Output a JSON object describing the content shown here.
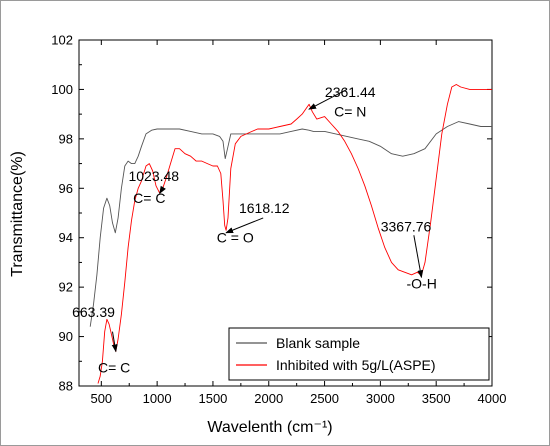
{
  "chart_data": {
    "type": "line",
    "xlabel": "Wavelenth (cm⁻¹)",
    "ylabel": "Transmittance(%)",
    "xlim": [
      300,
      4000
    ],
    "ylim": [
      88,
      102
    ],
    "xticks": [
      "500",
      "1000",
      "1500",
      "2000",
      "2500",
      "3000",
      "3500",
      "4000"
    ],
    "yticks": [
      "88",
      "90",
      "92",
      "94",
      "96",
      "98",
      "100",
      "102"
    ],
    "grid": false,
    "legend_position": "bottom-right",
    "series": [
      {
        "name": "Blank sample",
        "color": "#555555",
        "points": [
          [
            400,
            90.4
          ],
          [
            430,
            91.3
          ],
          [
            460,
            92.5
          ],
          [
            490,
            94.0
          ],
          [
            520,
            95.2
          ],
          [
            550,
            95.6
          ],
          [
            575,
            95.3
          ],
          [
            600,
            94.6
          ],
          [
            625,
            94.2
          ],
          [
            650,
            94.8
          ],
          [
            680,
            96.0
          ],
          [
            710,
            96.9
          ],
          [
            740,
            97.1
          ],
          [
            770,
            97.0
          ],
          [
            800,
            97.0
          ],
          [
            830,
            97.3
          ],
          [
            860,
            97.7
          ],
          [
            900,
            98.2
          ],
          [
            950,
            98.35
          ],
          [
            1000,
            98.4
          ],
          [
            1100,
            98.4
          ],
          [
            1200,
            98.4
          ],
          [
            1300,
            98.3
          ],
          [
            1400,
            98.2
          ],
          [
            1500,
            98.2
          ],
          [
            1560,
            98.1
          ],
          [
            1590,
            97.9
          ],
          [
            1610,
            97.2
          ],
          [
            1630,
            97.6
          ],
          [
            1660,
            98.2
          ],
          [
            1700,
            98.2
          ],
          [
            1800,
            98.2
          ],
          [
            1900,
            98.2
          ],
          [
            2000,
            98.2
          ],
          [
            2100,
            98.2
          ],
          [
            2200,
            98.3
          ],
          [
            2300,
            98.4
          ],
          [
            2360,
            98.35
          ],
          [
            2400,
            98.3
          ],
          [
            2500,
            98.3
          ],
          [
            2600,
            98.2
          ],
          [
            2700,
            98.1
          ],
          [
            2800,
            98.0
          ],
          [
            2900,
            97.9
          ],
          [
            3000,
            97.7
          ],
          [
            3100,
            97.4
          ],
          [
            3200,
            97.3
          ],
          [
            3300,
            97.4
          ],
          [
            3400,
            97.6
          ],
          [
            3500,
            98.2
          ],
          [
            3600,
            98.5
          ],
          [
            3700,
            98.7
          ],
          [
            3800,
            98.6
          ],
          [
            3900,
            98.5
          ],
          [
            4000,
            98.5
          ]
        ]
      },
      {
        "name": "Inhibited with 5g/L(ASPE)",
        "color": "#ff0000",
        "points": [
          [
            470,
            88.1
          ],
          [
            490,
            88.4
          ],
          [
            510,
            89.0
          ],
          [
            530,
            90.2
          ],
          [
            550,
            90.7
          ],
          [
            570,
            90.5
          ],
          [
            590,
            90.1
          ],
          [
            610,
            89.7
          ],
          [
            630,
            89.4
          ],
          [
            650,
            89.9
          ],
          [
            680,
            90.9
          ],
          [
            710,
            92.2
          ],
          [
            740,
            93.6
          ],
          [
            770,
            94.7
          ],
          [
            800,
            95.5
          ],
          [
            830,
            96.0
          ],
          [
            860,
            96.3
          ],
          [
            900,
            96.9
          ],
          [
            930,
            97.0
          ],
          [
            960,
            96.7
          ],
          [
            990,
            96.1
          ],
          [
            1023,
            95.8
          ],
          [
            1050,
            96.0
          ],
          [
            1080,
            96.4
          ],
          [
            1120,
            97.0
          ],
          [
            1160,
            97.6
          ],
          [
            1200,
            97.6
          ],
          [
            1250,
            97.4
          ],
          [
            1300,
            97.3
          ],
          [
            1350,
            97.1
          ],
          [
            1400,
            97.1
          ],
          [
            1450,
            97.0
          ],
          [
            1500,
            96.9
          ],
          [
            1540,
            96.9
          ],
          [
            1570,
            96.6
          ],
          [
            1590,
            95.5
          ],
          [
            1605,
            94.5
          ],
          [
            1618,
            94.3
          ],
          [
            1635,
            94.8
          ],
          [
            1660,
            96.8
          ],
          [
            1700,
            97.8
          ],
          [
            1750,
            98.1
          ],
          [
            1800,
            98.2
          ],
          [
            1850,
            98.3
          ],
          [
            1900,
            98.4
          ],
          [
            2000,
            98.4
          ],
          [
            2100,
            98.5
          ],
          [
            2200,
            98.6
          ],
          [
            2250,
            98.8
          ],
          [
            2300,
            99.0
          ],
          [
            2330,
            99.2
          ],
          [
            2361,
            99.4
          ],
          [
            2390,
            99.1
          ],
          [
            2430,
            98.8
          ],
          [
            2500,
            98.9
          ],
          [
            2560,
            98.6
          ],
          [
            2620,
            98.3
          ],
          [
            2680,
            97.9
          ],
          [
            2740,
            97.4
          ],
          [
            2800,
            96.8
          ],
          [
            2860,
            96.1
          ],
          [
            2920,
            95.3
          ],
          [
            2980,
            94.4
          ],
          [
            3040,
            93.6
          ],
          [
            3100,
            93.0
          ],
          [
            3160,
            92.7
          ],
          [
            3220,
            92.6
          ],
          [
            3280,
            92.5
          ],
          [
            3330,
            92.6
          ],
          [
            3368,
            92.5
          ],
          [
            3400,
            93.0
          ],
          [
            3450,
            94.6
          ],
          [
            3500,
            96.4
          ],
          [
            3550,
            98.2
          ],
          [
            3600,
            99.4
          ],
          [
            3640,
            100.1
          ],
          [
            3680,
            100.2
          ],
          [
            3720,
            100.1
          ],
          [
            3800,
            100.0
          ],
          [
            3900,
            100.0
          ],
          [
            4000,
            100.0
          ]
        ]
      }
    ],
    "annotations": [
      {
        "number": "663.39",
        "group": "C= C",
        "at": [
          630,
          89.4
        ],
        "number_at": [
          430,
          90.8
        ],
        "group_at": [
          615,
          88.55
        ],
        "arrow_from": [
          600,
          90.2
        ]
      },
      {
        "number": "1023.48",
        "group": "C= C",
        "at": [
          1023,
          95.8
        ],
        "number_at": [
          970,
          96.3
        ],
        "group_at": [
          930,
          95.4
        ],
        "arrow_from": [
          1050,
          96.0
        ]
      },
      {
        "number": "1618.12",
        "group": "C = O",
        "at": [
          1618,
          94.2
        ],
        "number_at": [
          1960,
          95.0
        ],
        "group_at": [
          1700,
          93.8
        ],
        "arrow_from": [
          1950,
          94.8
        ]
      },
      {
        "number": "2361.44",
        "group": "C= N",
        "at": [
          2361,
          99.2
        ],
        "number_at": [
          2730,
          99.7
        ],
        "group_at": [
          2730,
          98.9
        ],
        "arrow_from": [
          2700,
          100.0
        ]
      },
      {
        "number": "3367.76",
        "group": "-O-H",
        "at": [
          3368,
          92.4
        ],
        "number_at": [
          3230,
          94.25
        ],
        "group_at": [
          3370,
          91.95
        ],
        "arrow_from": [
          3300,
          94.1
        ]
      }
    ]
  }
}
